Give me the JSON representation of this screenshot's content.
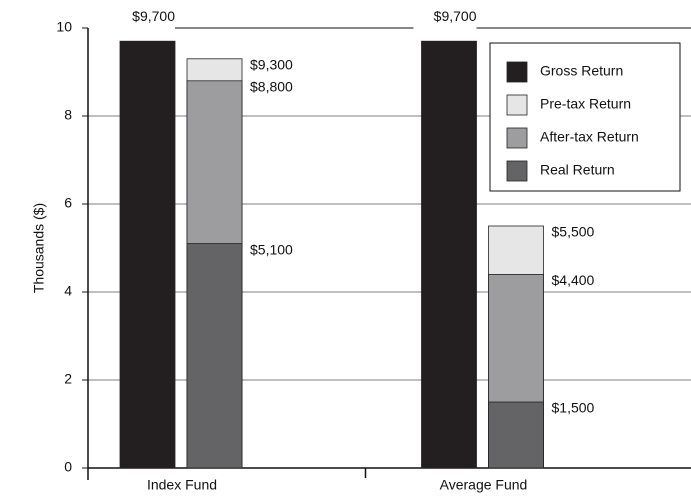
{
  "chart_data": {
    "type": "bar",
    "y_label": "Thousands ($)",
    "categories": [
      "Index Fund",
      "Average Fund"
    ],
    "ylim": [
      0,
      10
    ],
    "yticks": [
      0,
      2,
      4,
      6,
      8,
      10
    ],
    "grid": true,
    "legend": "upper right",
    "series": [
      {
        "name": "Gross Return",
        "color": "#231f20",
        "values": [
          9.7,
          9.7
        ],
        "value_labels": [
          "$9,700",
          "$9,700"
        ]
      },
      {
        "name": "Pre-tax Return",
        "color": "#e6e6e6",
        "values": [
          9.3,
          5.5
        ],
        "value_labels": [
          "$9,300",
          "$5,500"
        ]
      },
      {
        "name": "After-tax Return",
        "color": "#9d9da0",
        "values": [
          8.8,
          4.4
        ],
        "value_labels": [
          "$8,800",
          "$4,400"
        ]
      },
      {
        "name": "Real Return",
        "color": "#646466",
        "values": [
          5.1,
          1.5
        ],
        "value_labels": [
          "$5,100",
          "$1,500"
        ]
      }
    ]
  }
}
